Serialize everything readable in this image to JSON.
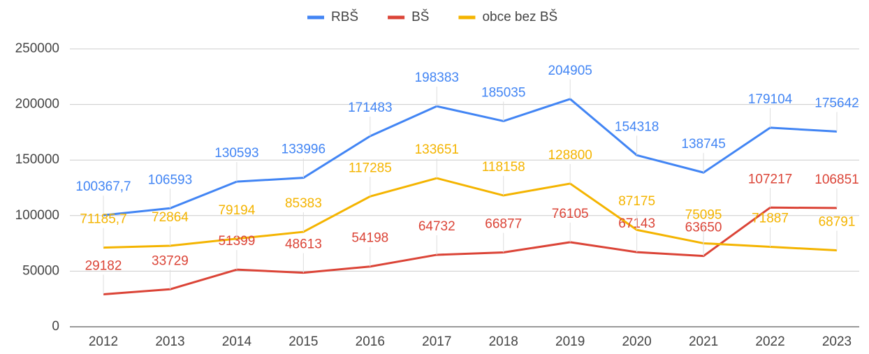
{
  "chart_data": {
    "type": "line",
    "categories": [
      "2012",
      "2013",
      "2014",
      "2015",
      "2016",
      "2017",
      "2018",
      "2019",
      "2020",
      "2021",
      "2022",
      "2023"
    ],
    "series": [
      {
        "name": "RBŠ",
        "color": "#4285f4",
        "values": [
          100367.7,
          106593,
          130593,
          133996,
          171483,
          198383,
          185035,
          204905,
          154318,
          138745,
          179104,
          175642
        ],
        "value_labels": [
          "100367,7",
          "106593",
          "130593",
          "133996",
          "171483",
          "198383",
          "185035",
          "204905",
          "154318",
          "138745",
          "179104",
          "175642"
        ]
      },
      {
        "name": "BŠ",
        "color": "#db4437",
        "values": [
          29182,
          33729,
          51399,
          48613,
          54198,
          64732,
          66877,
          76105,
          67143,
          63650,
          107217,
          106851
        ]
      },
      {
        "name": "obce bez BŠ",
        "color": "#f4b400",
        "values": [
          71185.7,
          72864,
          79194,
          85383,
          117285,
          133651,
          118158,
          128800,
          87175,
          75095,
          71887,
          68791
        ],
        "value_labels": [
          "71185,7",
          "72864",
          "79194",
          "85383",
          "117285",
          "133651",
          "118158",
          "128800",
          "87175",
          "75095",
          "71887",
          "68791"
        ]
      }
    ],
    "ylim": [
      0,
      250000
    ],
    "yticks": [
      0,
      50000,
      100000,
      150000,
      200000,
      250000
    ],
    "grid": true,
    "legend": "top"
  }
}
